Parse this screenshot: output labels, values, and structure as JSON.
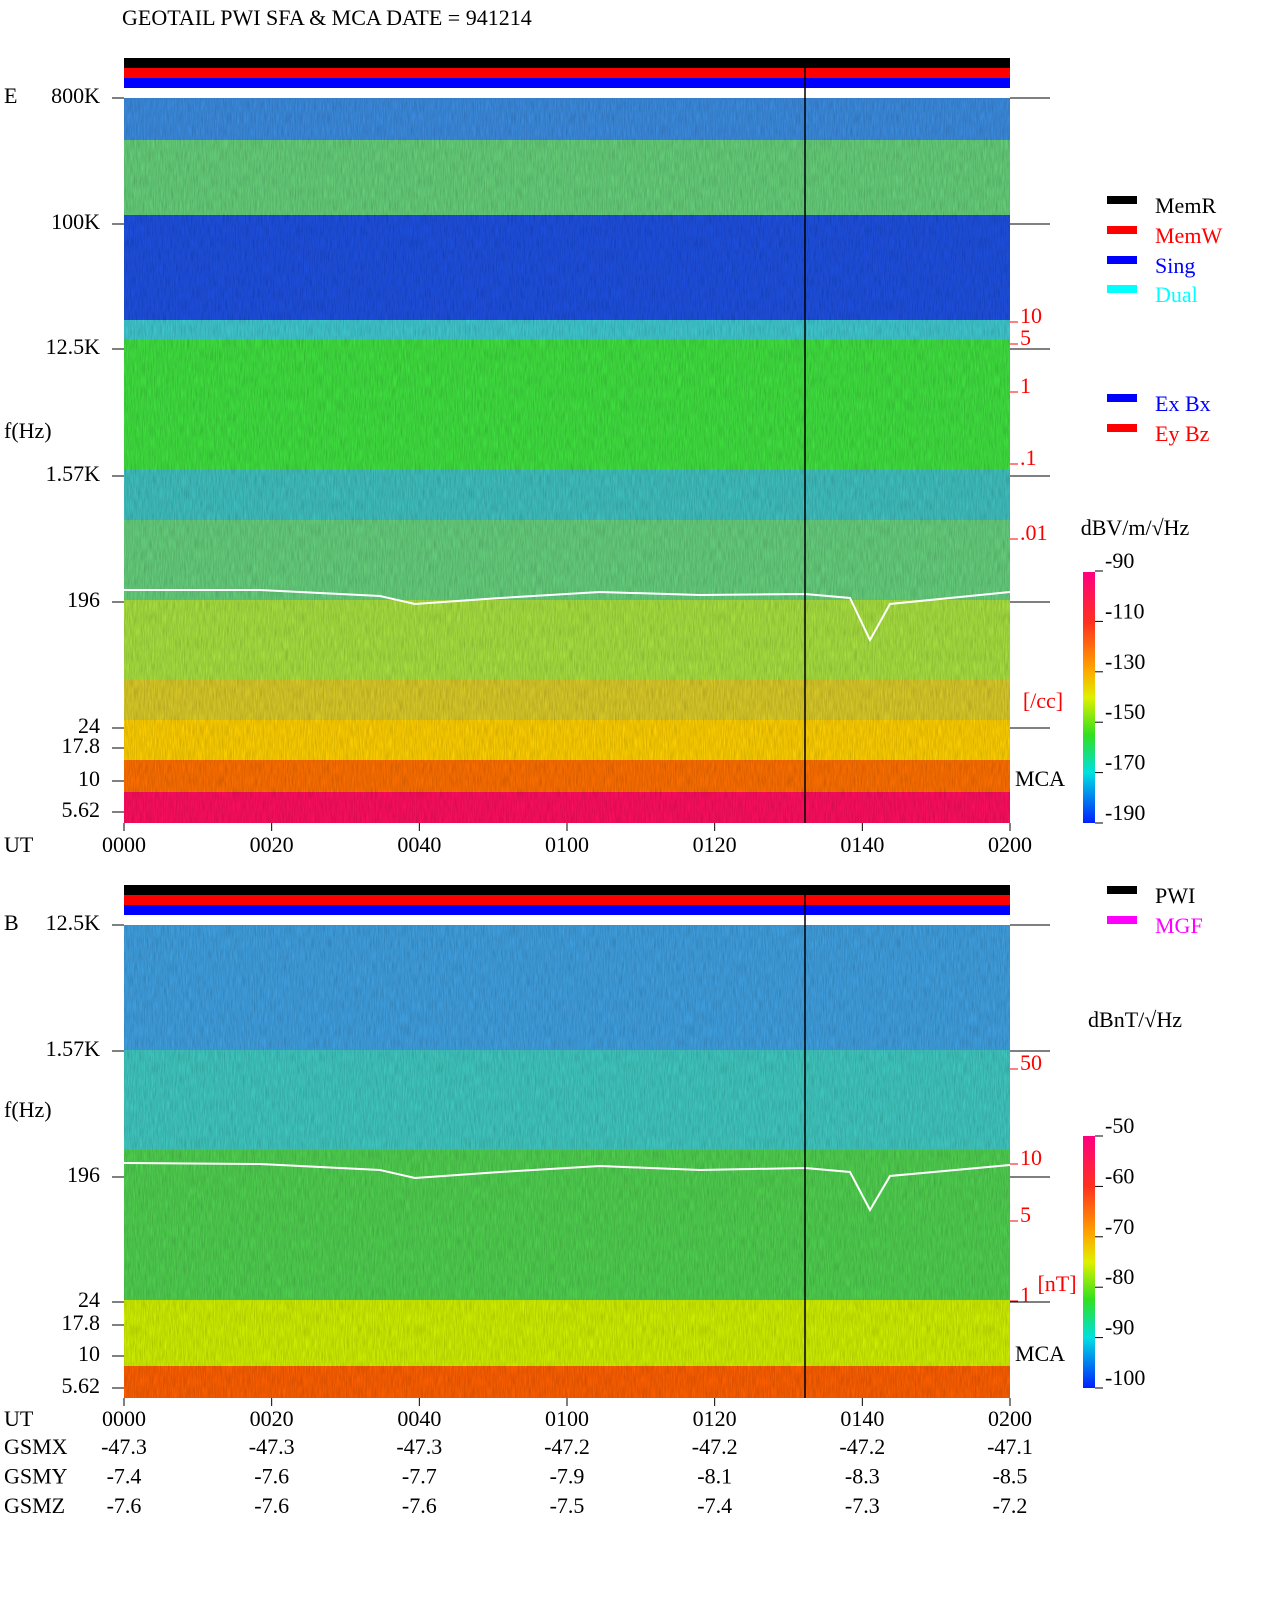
{
  "title": "GEOTAIL  PWI SFA & MCA   DATE = 941214",
  "panels": [
    {
      "label": "E",
      "ylabel": "f(Hz)",
      "freq_ticks": [
        "800K",
        "100K",
        "12.5K",
        "1.57K",
        "196",
        "24",
        "17.8",
        "10",
        "5.62"
      ],
      "density_ticks": [
        "10",
        "5",
        "1",
        ".1",
        ".01"
      ],
      "density_unit": "[/cc]",
      "mca": "MCA",
      "colorbar_unit": "dBV/m/√Hz",
      "colorbar_ticks": [
        -90,
        -110,
        -130,
        -150,
        -170,
        -190
      ],
      "time_label": "UT",
      "legends": [
        [
          {
            "name": "MemR",
            "color": "#000000"
          },
          {
            "name": "MemW",
            "color": "#ff0000"
          },
          {
            "name": "Sing",
            "color": "#0000ff"
          },
          {
            "name": "Dual",
            "color": "#00ffff"
          }
        ],
        [
          {
            "name": "Ex Bx",
            "color": "#0000ff"
          },
          {
            "name": "Ey Bz",
            "color": "#ff0000"
          }
        ]
      ]
    },
    {
      "label": "B",
      "ylabel": "f(Hz)",
      "freq_ticks": [
        "12.5K",
        "1.57K",
        "196",
        "24",
        "17.8",
        "10",
        "5.62"
      ],
      "density_ticks": [
        "50",
        "10",
        "5",
        "1"
      ],
      "density_unit": "[nT]",
      "mca": "MCA",
      "colorbar_unit": "dBnT/√Hz",
      "colorbar_ticks": [
        -50,
        -60,
        -70,
        -80,
        -90,
        -100
      ],
      "time_label": "UT",
      "legends": [
        [
          {
            "name": "PWI",
            "color": "#000000"
          },
          {
            "name": "MGF",
            "color": "#ff00ff"
          }
        ]
      ]
    }
  ],
  "time_ticks": [
    "0000",
    "0020",
    "0040",
    "0100",
    "0120",
    "0140",
    "0200"
  ],
  "orbit": [
    {
      "name": "GSMX",
      "values": [
        -47.3,
        -47.3,
        -47.3,
        -47.2,
        -47.2,
        -47.2,
        -47.1
      ]
    },
    {
      "name": "GSMY",
      "values": [
        -7.4,
        -7.6,
        -7.7,
        -7.9,
        -8.1,
        -8.3,
        -8.5
      ]
    },
    {
      "name": "GSMZ",
      "values": [
        -7.6,
        -7.6,
        -7.6,
        -7.5,
        -7.4,
        -7.3,
        -7.2
      ]
    }
  ]
}
